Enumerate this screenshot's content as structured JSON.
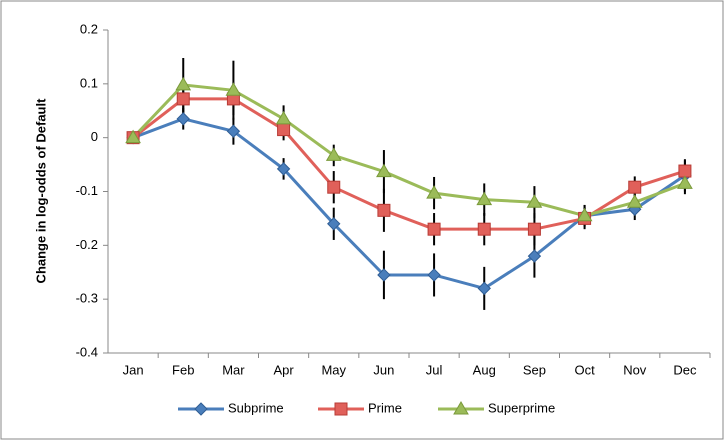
{
  "chart_data": {
    "type": "line",
    "y_label": "Change in log-odds of Default",
    "categories": [
      "Jan",
      "Feb",
      "Mar",
      "Apr",
      "May",
      "Jun",
      "Jul",
      "Aug",
      "Sep",
      "Oct",
      "Nov",
      "Dec"
    ],
    "series": [
      {
        "name": "Subprime",
        "color": "#4a7ebb",
        "marker": "diamond",
        "values": [
          0,
          0.035,
          0.012,
          -0.058,
          -0.16,
          -0.255,
          -0.255,
          -0.28,
          -0.22,
          -0.145,
          -0.133,
          -0.07
        ],
        "errors": [
          0,
          0.02,
          0.025,
          0.02,
          0.03,
          0.045,
          0.04,
          0.04,
          0.04,
          0.02,
          0.02,
          0.03
        ]
      },
      {
        "name": "Prime",
        "color": "#e0605a",
        "marker": "square",
        "values": [
          0,
          0.072,
          0.072,
          0.015,
          -0.092,
          -0.135,
          -0.17,
          -0.17,
          -0.17,
          -0.15,
          -0.092,
          -0.062
        ],
        "errors": [
          0,
          0.03,
          0.03,
          0.02,
          0.03,
          0.04,
          0.03,
          0.03,
          0.03,
          0.02,
          0.02,
          0.02
        ]
      },
      {
        "name": "Superprime",
        "color": "#9bbb59",
        "marker": "triangle",
        "values": [
          0,
          0.098,
          0.088,
          0.035,
          -0.033,
          -0.063,
          -0.103,
          -0.115,
          -0.12,
          -0.145,
          -0.12,
          -0.085
        ],
        "errors": [
          0,
          0.05,
          0.055,
          0.025,
          0.02,
          0.04,
          0.03,
          0.03,
          0.03,
          0.02,
          0.02,
          0.02
        ]
      }
    ],
    "error_color": "#000000",
    "ylim": [
      -0.4,
      0.2
    ],
    "yticks": [
      -0.4,
      -0.3,
      -0.2,
      -0.1,
      0,
      0.1,
      0.2
    ],
    "grid": false,
    "legend": "bottom"
  }
}
